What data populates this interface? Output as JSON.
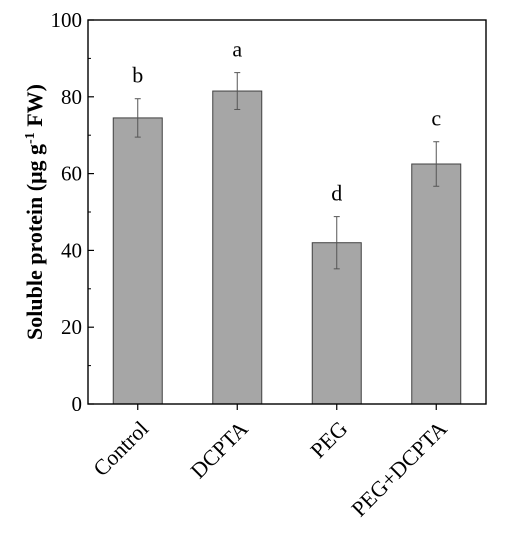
{
  "chart_data": {
    "type": "bar",
    "categories": [
      "Control",
      "DCPTA",
      "PEG",
      "PEG+DCPTA"
    ],
    "series": [
      {
        "values": [
          74.5,
          81.5,
          42.0,
          62.5
        ],
        "errors": [
          5.0,
          4.8,
          6.8,
          5.8
        ],
        "significance": [
          "b",
          "a",
          "d",
          "c"
        ]
      }
    ],
    "ylabel": {
      "main": "Soluble protein (μg g",
      "sup": "-1",
      "rest": " FW)"
    },
    "ylim": [
      0,
      100
    ],
    "yticks": [
      "0",
      "20",
      "40",
      "60",
      "80",
      "100"
    ],
    "bar_color": "#a6a6a6",
    "bar_stroke": "#404040",
    "grid": false,
    "legend": "none"
  }
}
